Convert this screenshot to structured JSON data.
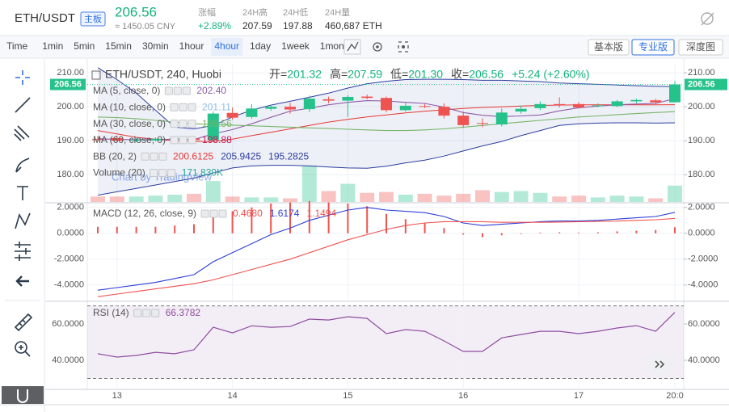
{
  "header": {
    "symbol": "ETH/USDT",
    "board": "主板",
    "price": "206.56",
    "cny": "≈ 1450.05 CNY",
    "stats": [
      {
        "label": "涨幅",
        "value": "+2.89%"
      },
      {
        "label": "24H高",
        "value": "207.59"
      },
      {
        "label": "24H低",
        "value": "197.88"
      },
      {
        "label": "24H量",
        "value": "460,687 ETH"
      }
    ]
  },
  "toolbar": {
    "intervals": [
      "Time",
      "1min",
      "5min",
      "15min",
      "30min",
      "1hour",
      "4hour",
      "1day",
      "1week",
      "1mon"
    ],
    "active": 6,
    "versions": [
      "基本版",
      "专业版",
      "深度图"
    ],
    "active_version": 1
  },
  "chart_data": [
    {
      "type": "candlestick",
      "title": "ETH/USDT, 240, Huobi",
      "ohlc_legend": [
        {
          "label": "开=",
          "value": "201.32"
        },
        {
          "label": "高=",
          "value": "207.59"
        },
        {
          "label": "低=",
          "value": "201.30"
        },
        {
          "label": "收=",
          "value": "206.56"
        }
      ],
      "change": "+5.24 (+2.60%)",
      "watermark": "Chart by TradingView",
      "categories": [
        null,
        "13",
        null,
        null,
        null,
        null,
        null,
        "14",
        null,
        null,
        null,
        null,
        null,
        "15",
        null,
        null,
        null,
        null,
        null,
        "16",
        null,
        null,
        null,
        null,
        null,
        "17",
        null,
        null,
        null,
        null,
        "20:0"
      ],
      "open": [
        190.5,
        190.8,
        190.0,
        190.1,
        190.5,
        190.7,
        190.2,
        198.2,
        197.0,
        199.4,
        200.0,
        199.3,
        202.2,
        201.8,
        203.0,
        202.6,
        199.0,
        200.2,
        200.0,
        197.4,
        195.2,
        194.8,
        198.6,
        199.6,
        200.8,
        200.8,
        200.2,
        200.2,
        201.6,
        201.9,
        201.32
      ],
      "high": [
        191.5,
        191.5,
        190.8,
        191.0,
        191.2,
        191.0,
        198.6,
        199.8,
        200.8,
        200.5,
        201.2,
        203.3,
        203.0,
        203.4,
        203.6,
        203.0,
        201.2,
        201.0,
        201.0,
        198.6,
        196.6,
        199.5,
        200.4,
        201.6,
        202.8,
        201.4,
        201.0,
        202.0,
        202.4,
        202.3,
        207.59
      ],
      "low": [
        189.8,
        189.5,
        189.6,
        189.8,
        189.9,
        189.8,
        189.9,
        196.2,
        196.5,
        198.8,
        198.0,
        198.5,
        201.0,
        197.0,
        202.2,
        198.4,
        198.6,
        199.6,
        196.6,
        193.8,
        194.0,
        194.2,
        198.0,
        199.0,
        199.8,
        199.6,
        199.8,
        199.9,
        201.0,
        200.8,
        201.3
      ],
      "close": [
        190.2,
        190.0,
        190.3,
        190.6,
        190.7,
        190.2,
        198.0,
        196.8,
        199.5,
        200.0,
        199.2,
        202.4,
        201.8,
        202.9,
        202.6,
        199.0,
        200.3,
        200.0,
        197.4,
        194.6,
        195.0,
        198.3,
        199.4,
        200.8,
        200.4,
        199.8,
        200.4,
        201.6,
        202.0,
        201.3,
        206.56
      ],
      "up_color": "#26c28c",
      "down_color": "#ef5350",
      "ylim": [
        172,
        212.4
      ],
      "yticks": [
        {
          "value": 210,
          "label": "210.00"
        },
        {
          "value": 200,
          "label": "200.00"
        },
        {
          "value": 190,
          "label": "190.00"
        },
        {
          "value": 180,
          "label": "180.00"
        }
      ],
      "grid": true,
      "overlays": [
        {
          "name": "MA (5, close, 0)",
          "color": "#8e5ca8",
          "last": "202.40",
          "values": [
            190.6,
            190.4,
            190.3,
            190.4,
            190.4,
            190.4,
            192.0,
            193.3,
            195.0,
            196.9,
            198.7,
            199.6,
            200.6,
            201.3,
            201.8,
            201.7,
            201.3,
            201.0,
            199.9,
            198.3,
            197.5,
            197.1,
            197.3,
            197.6,
            198.8,
            199.7,
            200.2,
            200.6,
            200.8,
            201.0,
            202.4
          ]
        },
        {
          "name": "MA (10, close, 0)",
          "color": "#8fbbe8",
          "last": "201.11"
        },
        {
          "name": "MA (30, close, 0)",
          "color": "#79b56a",
          "last": "198.56",
          "values": [
            197,
            196.8,
            196.5,
            196,
            195.5,
            195,
            194.8,
            194.6,
            194.4,
            194.2,
            194,
            193.8,
            193.6,
            193.4,
            193.2,
            193,
            193,
            193.2,
            193.5,
            194,
            194.5,
            195,
            195.5,
            196,
            196.5,
            197,
            197.3,
            197.7,
            198,
            198.3,
            198.56
          ]
        },
        {
          "name": "MA (60, close, 0)",
          "color": "#c2185b",
          "last": "198.88"
        }
      ],
      "bands": {
        "name": "BB (20, 2)",
        "fill": "#2c3e9e",
        "lines": [
          {
            "color": "#e53935",
            "last": "200.6125",
            "values": [
              193,
              192,
              191,
              190.5,
              190,
              189.8,
              189.8,
              190.5,
              191.5,
              192.5,
              193.5,
              194.5,
              195.5,
              196.3,
              197,
              197.6,
              198.2,
              198.7,
              199.1,
              199.5,
              199.8,
              200,
              200.2,
              200.4,
              200.5,
              200.6,
              200.6,
              200.6,
              200.6,
              200.6,
              200.61
            ]
          },
          {
            "color": "#2c3e9e",
            "last": "205.9425",
            "values": [
              211.5,
              208,
              204,
              199,
              194,
              193.5,
              194.5,
              197,
              199,
              200.5,
              201.6,
              202.8,
              204,
              205.5,
              206.8,
              207.5,
              208,
              208.1,
              208.1,
              208,
              207.8,
              207.8,
              207.6,
              207.4,
              207,
              206.8,
              206.6,
              206.4,
              206.2,
              206,
              205.94
            ]
          },
          {
            "color": "#2c3e9e",
            "last": "195.2825",
            "values": [
              174,
              175,
              176,
              177,
              178,
              179,
              180.5,
              182,
              182.6,
              182.8,
              182.8,
              182.6,
              182.3,
              182,
              181.9,
              182.5,
              183.5,
              184.3,
              185.5,
              187,
              188.5,
              189.8,
              191.5,
              193,
              194.5,
              195,
              195.2,
              195.3,
              195.3,
              195.2,
              195.28
            ]
          }
        ]
      },
      "volume": {
        "name": "Volume (20)",
        "color": "#26a69a",
        "last": "171.839K",
        "values": [
          60,
          60,
          60,
          70,
          80,
          90,
          230,
          60,
          50,
          50,
          40,
          400,
          120,
          200,
          100,
          110,
          80,
          90,
          70,
          90,
          130,
          110,
          120,
          100,
          60,
          70,
          50,
          70,
          60,
          40,
          180
        ]
      }
    },
    {
      "type": "macd",
      "title": "MACD (12, 26, close, 9)",
      "ylim": [
        -5.2,
        2.3
      ],
      "yticks": [
        {
          "value": 2,
          "label": "2.0000"
        },
        {
          "value": 0,
          "label": "0.0000"
        },
        {
          "value": -2,
          "label": "-2.0000"
        },
        {
          "value": -4,
          "label": "-4.0000"
        }
      ],
      "grid": true,
      "series": [
        {
          "kind": "histogram",
          "color": "#ef5350",
          "last": "0.4680",
          "values": [
            0.5,
            0.5,
            0.5,
            0.5,
            0.6,
            0.7,
            1.4,
            1.7,
            2.0,
            2.3,
            2.4,
            2.5,
            2.4,
            2.3,
            2.1,
            1.5,
            1.1,
            0.8,
            0.4,
            -0.1,
            -0.3,
            -0.15,
            -0.05,
            0.05,
            0.08,
            0.05,
            0.08,
            0.15,
            0.2,
            0.25,
            0.468
          ]
        },
        {
          "kind": "line",
          "color": "#2c3ed8",
          "last": "1.6174",
          "values": [
            -4.4,
            -4.2,
            -4.0,
            -3.8,
            -3.5,
            -3.2,
            -2.2,
            -1.5,
            -0.8,
            -0.1,
            0.4,
            1.0,
            1.4,
            1.8,
            2.0,
            1.8,
            1.7,
            1.6,
            1.3,
            0.8,
            0.6,
            0.7,
            0.8,
            0.9,
            0.95,
            0.95,
            1.0,
            1.1,
            1.2,
            1.3,
            1.6174
          ]
        },
        {
          "kind": "line",
          "color": "#ef5350",
          "last": "1.1494",
          "values": [
            -4.9,
            -4.7,
            -4.5,
            -4.3,
            -4.1,
            -3.9,
            -3.6,
            -3.2,
            -2.8,
            -2.4,
            -2.0,
            -1.5,
            -1.0,
            -0.5,
            -0.1,
            0.3,
            0.6,
            0.8,
            0.9,
            0.9,
            0.9,
            0.85,
            0.85,
            0.85,
            0.87,
            0.9,
            0.92,
            0.95,
            1.0,
            1.05,
            1.1494
          ]
        }
      ]
    },
    {
      "type": "line",
      "title": "RSI (14)",
      "color": "#8e4fa0",
      "last": "66.3782",
      "ylim": [
        24,
        71.6
      ],
      "yticks": [
        {
          "value": 60,
          "label": "60.0000"
        },
        {
          "value": 40,
          "label": "40.0000"
        }
      ],
      "grid": true,
      "bands": [
        30,
        70
      ],
      "values": [
        43.6,
        41.8,
        42.7,
        44.4,
        43.6,
        45.8,
        58.2,
        55.1,
        59,
        58.2,
        58.6,
        62.7,
        62.2,
        64,
        63.1,
        54.7,
        56.9,
        56,
        50.7,
        44.9,
        44.9,
        52.4,
        54.2,
        56,
        56,
        54.7,
        56,
        57.8,
        59.1,
        56,
        66.3782
      ]
    }
  ]
}
